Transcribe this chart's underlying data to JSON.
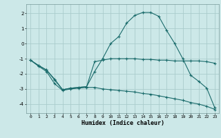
{
  "xlabel": "Humidex (Indice chaleur)",
  "bg_color": "#cce8e8",
  "grid_color": "#aacccc",
  "line_color": "#1a6b6b",
  "xlim": [
    -0.5,
    23.5
  ],
  "ylim": [
    -4.6,
    2.6
  ],
  "xticks": [
    0,
    1,
    2,
    3,
    4,
    5,
    6,
    7,
    8,
    9,
    10,
    11,
    12,
    13,
    14,
    15,
    16,
    17,
    18,
    19,
    20,
    21,
    22,
    23
  ],
  "yticks": [
    -4,
    -3,
    -2,
    -1,
    0,
    1,
    2
  ],
  "line1_x": [
    0,
    1,
    2,
    3,
    4,
    5,
    6,
    7,
    8,
    9,
    10,
    11,
    12,
    13,
    14,
    15,
    16,
    17,
    18,
    19,
    20,
    21,
    22,
    23
  ],
  "line1_y": [
    -1.1,
    -1.45,
    -1.75,
    -2.35,
    -3.05,
    -2.95,
    -2.9,
    -2.85,
    -1.2,
    -1.1,
    -1.0,
    -1.0,
    -1.0,
    -1.0,
    -1.05,
    -1.05,
    -1.1,
    -1.1,
    -1.15,
    -1.15,
    -1.15,
    -1.15,
    -1.2,
    -1.3
  ],
  "line2_x": [
    0,
    1,
    2,
    3,
    4,
    5,
    6,
    7,
    8,
    9,
    10,
    11,
    12,
    13,
    14,
    15,
    16,
    17,
    18,
    19,
    20,
    21,
    22,
    23
  ],
  "line2_y": [
    -1.1,
    -1.5,
    -1.85,
    -2.65,
    -3.1,
    -3.0,
    -2.95,
    -2.9,
    -2.9,
    -3.0,
    -3.05,
    -3.1,
    -3.15,
    -3.2,
    -3.3,
    -3.35,
    -3.45,
    -3.55,
    -3.65,
    -3.75,
    -3.9,
    -4.0,
    -4.15,
    -4.35
  ],
  "line3_x": [
    0,
    1,
    2,
    3,
    4,
    5,
    6,
    7,
    8,
    9,
    10,
    11,
    12,
    13,
    14,
    15,
    16,
    17,
    18,
    19,
    20,
    21,
    22,
    23
  ],
  "line3_y": [
    -1.1,
    -1.45,
    -1.75,
    -2.4,
    -3.05,
    -2.95,
    -2.9,
    -2.85,
    -1.85,
    -1.0,
    0.0,
    0.45,
    1.35,
    1.85,
    2.05,
    2.05,
    1.8,
    0.85,
    0.0,
    -1.0,
    -2.1,
    -2.5,
    -2.95,
    -4.25
  ]
}
